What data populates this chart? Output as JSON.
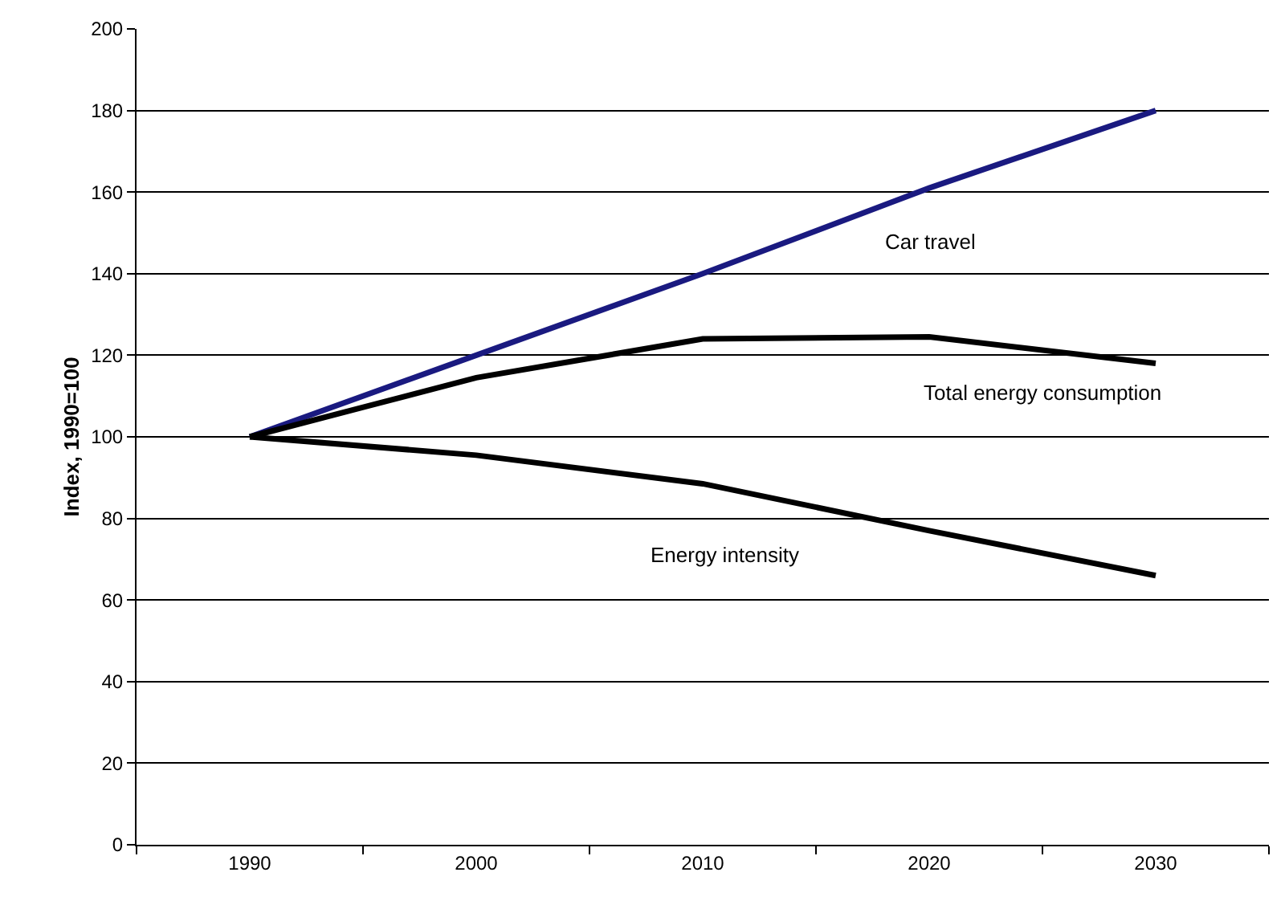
{
  "chart_data": {
    "type": "line",
    "ylabel": "Index, 1990=100",
    "categories": [
      "1990",
      "2000",
      "2010",
      "2020",
      "2030"
    ],
    "series": [
      {
        "name": "Car travel",
        "color": "#1a1a80",
        "values": [
          100,
          120,
          140,
          161,
          180
        ]
      },
      {
        "name": "Total energy consumption",
        "color": "#000000",
        "values": [
          100,
          114.5,
          124,
          124.5,
          118
        ]
      },
      {
        "name": "Energy intensity",
        "color": "#000000",
        "values": [
          100,
          95.5,
          88.5,
          77,
          66
        ]
      }
    ],
    "ylim": [
      0,
      200
    ],
    "yticks": [
      0,
      20,
      40,
      60,
      80,
      100,
      120,
      140,
      160,
      180,
      200
    ],
    "grid": "y",
    "legend": false,
    "marker": "none",
    "line_style": "solid"
  }
}
